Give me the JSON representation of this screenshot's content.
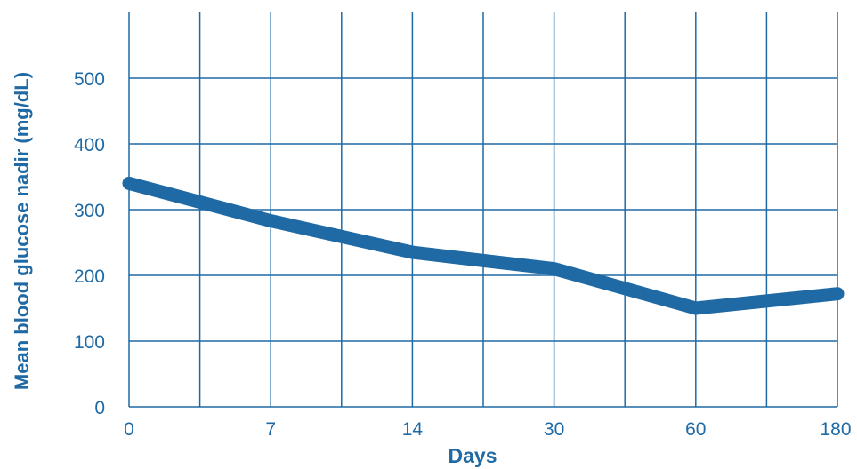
{
  "chart_data": {
    "type": "line",
    "title": "",
    "xlabel": "Days",
    "ylabel": "Mean blood glucose nadir (mg/dL)",
    "categories": [
      "0",
      "7",
      "14",
      "30",
      "60",
      "180"
    ],
    "x_scale": "categorical (equally spaced)",
    "y_ticks": [
      "0",
      "100",
      "200",
      "300",
      "400",
      "500"
    ],
    "ylim": [
      0,
      600
    ],
    "grid": true,
    "legend": "none",
    "series": [
      {
        "values": [
          340,
          283,
          235,
          210,
          150,
          172
        ]
      }
    ],
    "colors": {
      "grid": "#1f6aa5",
      "line": "#1f6aa5",
      "text": "#1f6aa5"
    }
  }
}
